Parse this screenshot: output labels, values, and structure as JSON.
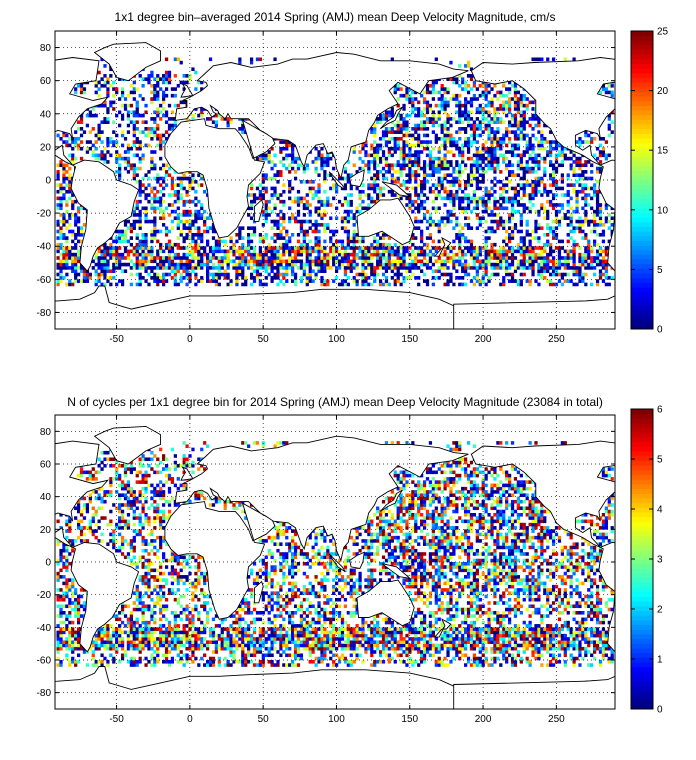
{
  "chart_data": [
    {
      "type": "heatmap",
      "title": "1x1 degree bin–averaged 2014 Spring (AMJ) mean Deep Velocity Magnitude, cm/s",
      "xlabel": "",
      "ylabel": "",
      "xlim": [
        -92,
        290
      ],
      "ylim": [
        -90,
        90
      ],
      "xticks": [
        -50,
        0,
        50,
        100,
        150,
        200,
        250
      ],
      "yticks": [
        -80,
        -60,
        -40,
        -20,
        0,
        20,
        40,
        60,
        80
      ],
      "grid": true,
      "colorbar": {
        "min": 0,
        "max": 25,
        "ticks": [
          0,
          5,
          10,
          15,
          20,
          25
        ],
        "colormap": "jet"
      },
      "seed": 7,
      "density": 0.42
    },
    {
      "type": "heatmap",
      "title": "N of cycles per 1x1 degree bin for 2014 Spring (AMJ) mean Deep Velocity Magnitude (23084 in total)",
      "xlabel": "",
      "ylabel": "",
      "xlim": [
        -92,
        290
      ],
      "ylim": [
        -90,
        90
      ],
      "xticks": [
        -50,
        0,
        50,
        100,
        150,
        200,
        250
      ],
      "yticks": [
        -80,
        -60,
        -40,
        -20,
        0,
        20,
        40,
        60,
        80
      ],
      "grid": true,
      "colorbar": {
        "min": 0,
        "max": 6,
        "ticks": [
          0,
          1,
          2,
          3,
          4,
          5,
          6
        ],
        "colormap": "jet"
      },
      "seed": 13,
      "density": 0.45
    }
  ]
}
